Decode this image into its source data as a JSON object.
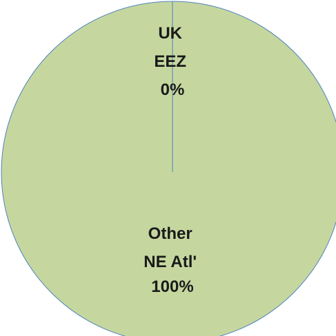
{
  "chart_data": {
    "type": "pie",
    "title": "",
    "categories": [
      "UK EEZ",
      "Other NE Atl'"
    ],
    "values": [
      0,
      100
    ],
    "unit": "%",
    "labels": [
      {
        "lines": [
          "UK",
          "EEZ",
          "0%"
        ]
      },
      {
        "lines": [
          "Other",
          "NE Atl'",
          "100%"
        ]
      }
    ],
    "slice_colors": [
      "#c5d79f",
      "#c5d79f"
    ],
    "edge_color": "#4f81bd",
    "legend": "none"
  }
}
